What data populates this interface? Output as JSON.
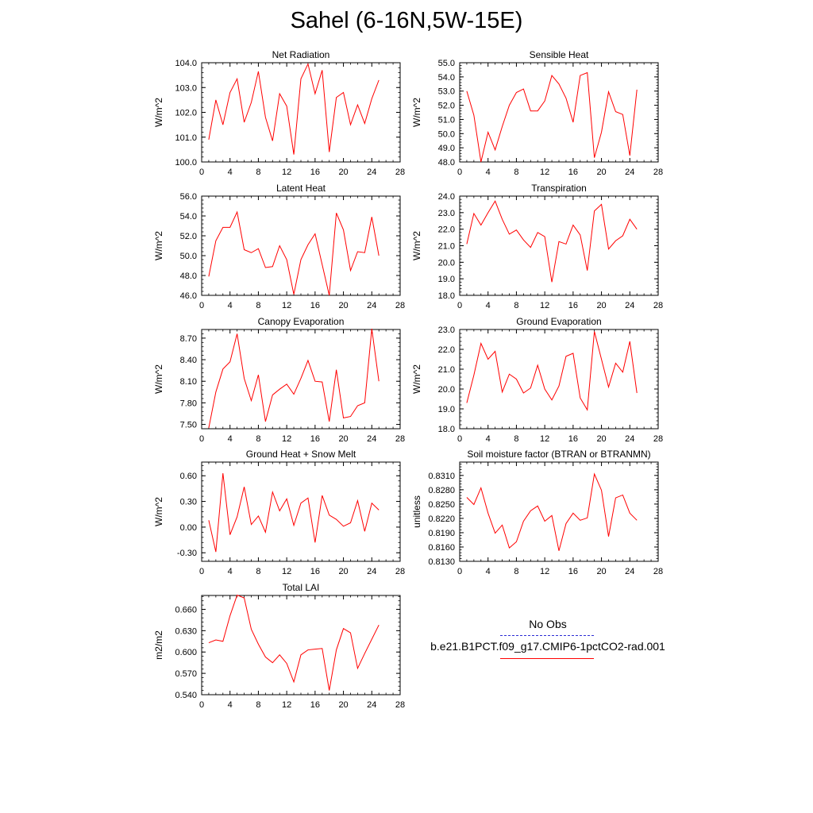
{
  "page": {
    "title": "Sahel (6-16N,5W-15E)"
  },
  "legend": {
    "entries": [
      {
        "label": "No Obs",
        "color": "#2b2bd4",
        "dashed": true
      },
      {
        "label": "b.e21.B1PCT.f09_g17.CMIP6-1pctCO2-rad.001",
        "color": "#ff0000",
        "dashed": false
      }
    ]
  },
  "chart_data": [
    {
      "type": "line",
      "title": "Net Radiation",
      "ylabel": "W/m^2",
      "xlim": [
        0,
        28
      ],
      "xticks": [
        0,
        4,
        8,
        12,
        16,
        20,
        24,
        28
      ],
      "ylim": [
        100.0,
        104.0
      ],
      "yticks": [
        "100.0",
        "101.0",
        "102.0",
        "103.0",
        "104.0"
      ],
      "x": [
        1,
        2,
        3,
        4,
        5,
        6,
        7,
        8,
        9,
        10,
        11,
        12,
        13,
        14,
        15,
        16,
        17,
        18,
        19,
        20,
        21,
        22,
        23,
        24,
        25
      ],
      "series": [
        {
          "color": "#ff0000",
          "values": [
            100.9,
            102.5,
            101.5,
            102.8,
            103.35,
            101.6,
            102.4,
            103.65,
            101.8,
            100.85,
            102.75,
            102.25,
            100.3,
            103.35,
            103.95,
            102.75,
            103.7,
            100.4,
            102.6,
            102.8,
            101.5,
            102.3,
            101.55,
            102.55,
            103.3
          ]
        }
      ]
    },
    {
      "type": "line",
      "title": "Sensible Heat",
      "ylabel": "W/m^2",
      "xlim": [
        0,
        28
      ],
      "xticks": [
        0,
        4,
        8,
        12,
        16,
        20,
        24,
        28
      ],
      "ylim": [
        48.0,
        55.0
      ],
      "yticks": [
        "48.0",
        "49.0",
        "50.0",
        "51.0",
        "52.0",
        "53.0",
        "54.0",
        "55.0"
      ],
      "x": [
        1,
        2,
        3,
        4,
        5,
        6,
        7,
        8,
        9,
        10,
        11,
        12,
        13,
        14,
        15,
        16,
        17,
        18,
        19,
        20,
        21,
        22,
        23,
        24,
        25
      ],
      "series": [
        {
          "color": "#ff0000",
          "values": [
            53.0,
            51.3,
            48.0,
            50.1,
            48.85,
            50.5,
            52.0,
            52.9,
            53.15,
            51.6,
            51.6,
            52.3,
            54.1,
            53.5,
            52.5,
            50.8,
            54.1,
            54.3,
            48.3,
            50.1,
            52.95,
            51.55,
            51.35,
            48.45,
            53.1
          ]
        }
      ]
    },
    {
      "type": "line",
      "title": "Latent Heat",
      "ylabel": "W/m^2",
      "xlim": [
        0,
        28
      ],
      "xticks": [
        0,
        4,
        8,
        12,
        16,
        20,
        24,
        28
      ],
      "ylim": [
        46.0,
        56.0
      ],
      "yticks": [
        "46.0",
        "48.0",
        "50.0",
        "52.0",
        "54.0",
        "56.0"
      ],
      "x": [
        1,
        2,
        3,
        4,
        5,
        6,
        7,
        8,
        9,
        10,
        11,
        12,
        13,
        14,
        15,
        16,
        17,
        18,
        19,
        20,
        21,
        22,
        23,
        24,
        25
      ],
      "series": [
        {
          "color": "#ff0000",
          "values": [
            47.9,
            51.5,
            52.85,
            52.85,
            54.4,
            50.6,
            50.3,
            50.7,
            48.8,
            48.9,
            51.0,
            49.6,
            46.1,
            49.6,
            51.1,
            52.2,
            49.1,
            46.0,
            54.3,
            52.6,
            48.5,
            50.4,
            50.3,
            53.9,
            50.0
          ]
        }
      ]
    },
    {
      "type": "line",
      "title": "Transpiration",
      "ylabel": "W/m^2",
      "xlim": [
        0,
        28
      ],
      "xticks": [
        0,
        4,
        8,
        12,
        16,
        20,
        24,
        28
      ],
      "ylim": [
        18.0,
        24.0
      ],
      "yticks": [
        "18.0",
        "19.0",
        "20.0",
        "21.0",
        "22.0",
        "23.0",
        "24.0"
      ],
      "x": [
        1,
        2,
        3,
        4,
        5,
        6,
        7,
        8,
        9,
        10,
        11,
        12,
        13,
        14,
        15,
        16,
        17,
        18,
        19,
        20,
        21,
        22,
        23,
        24,
        25
      ],
      "series": [
        {
          "color": "#ff0000",
          "values": [
            21.1,
            22.95,
            22.25,
            23.0,
            23.7,
            22.6,
            21.7,
            21.95,
            21.35,
            20.9,
            21.8,
            21.55,
            18.8,
            21.25,
            21.1,
            22.25,
            21.65,
            19.5,
            23.1,
            23.5,
            20.8,
            21.3,
            21.6,
            22.6,
            22.0
          ]
        }
      ]
    },
    {
      "type": "line",
      "title": "Canopy Evaporation",
      "ylabel": "W/m^2",
      "xlim": [
        0,
        28
      ],
      "xticks": [
        0,
        4,
        8,
        12,
        16,
        20,
        24,
        28
      ],
      "ylim": [
        7.44,
        8.82
      ],
      "yticks": [
        "7.50",
        "7.80",
        "8.10",
        "8.40",
        "8.70"
      ],
      "yticks_at": [
        7.5,
        7.8,
        8.1,
        8.4,
        8.7
      ],
      "x": [
        1,
        2,
        3,
        4,
        5,
        6,
        7,
        8,
        9,
        10,
        11,
        12,
        13,
        14,
        15,
        16,
        17,
        18,
        19,
        20,
        21,
        22,
        23,
        24,
        25
      ],
      "series": [
        {
          "color": "#ff0000",
          "values": [
            7.45,
            7.95,
            8.27,
            8.37,
            8.76,
            8.14,
            7.83,
            8.19,
            7.54,
            7.91,
            7.99,
            8.06,
            7.92,
            8.14,
            8.39,
            8.1,
            8.09,
            7.54,
            8.26,
            7.59,
            7.61,
            7.76,
            7.8,
            8.83,
            8.1
          ]
        }
      ]
    },
    {
      "type": "line",
      "title": "Ground Evaporation",
      "ylabel": "W/m^2",
      "xlim": [
        0,
        28
      ],
      "xticks": [
        0,
        4,
        8,
        12,
        16,
        20,
        24,
        28
      ],
      "ylim": [
        18.0,
        23.0
      ],
      "yticks": [
        "18.0",
        "19.0",
        "20.0",
        "21.0",
        "22.0",
        "23.0"
      ],
      "x": [
        1,
        2,
        3,
        4,
        5,
        6,
        7,
        8,
        9,
        10,
        11,
        12,
        13,
        14,
        15,
        16,
        17,
        18,
        19,
        20,
        21,
        22,
        23,
        24,
        25
      ],
      "series": [
        {
          "color": "#ff0000",
          "values": [
            19.3,
            20.7,
            22.3,
            21.5,
            21.9,
            19.85,
            20.75,
            20.5,
            19.8,
            20.05,
            21.2,
            20.0,
            19.45,
            20.15,
            21.65,
            21.8,
            19.55,
            18.95,
            22.9,
            21.5,
            20.1,
            21.3,
            20.85,
            22.4,
            19.8
          ]
        }
      ]
    },
    {
      "type": "line",
      "title": "Ground Heat + Snow Melt",
      "ylabel": "W/m^2",
      "xlim": [
        0,
        28
      ],
      "xticks": [
        0,
        4,
        8,
        12,
        16,
        20,
        24,
        28
      ],
      "ylim": [
        -0.4,
        0.76
      ],
      "yticks": [
        "-0.30",
        "0.00",
        "0.30",
        "0.60"
      ],
      "yticks_at": [
        -0.3,
        0.0,
        0.3,
        0.6
      ],
      "x": [
        1,
        2,
        3,
        4,
        5,
        6,
        7,
        8,
        9,
        10,
        11,
        12,
        13,
        14,
        15,
        16,
        17,
        18,
        19,
        20,
        21,
        22,
        23,
        24,
        25
      ],
      "series": [
        {
          "color": "#ff0000",
          "values": [
            0.08,
            -0.29,
            0.63,
            -0.09,
            0.12,
            0.47,
            0.03,
            0.13,
            -0.06,
            0.41,
            0.19,
            0.33,
            0.02,
            0.28,
            0.34,
            -0.18,
            0.37,
            0.14,
            0.09,
            0.01,
            0.05,
            0.31,
            -0.05,
            0.28,
            0.2
          ]
        }
      ]
    },
    {
      "type": "line",
      "title": "Soil moisture factor (BTRAN or BTRANMN)",
      "ylabel": "unitless",
      "xlim": [
        0,
        28
      ],
      "xticks": [
        0,
        4,
        8,
        12,
        16,
        20,
        24,
        28
      ],
      "ylim": [
        0.813,
        0.8338
      ],
      "yticks": [
        "0.8130",
        "0.8160",
        "0.8190",
        "0.8220",
        "0.8250",
        "0.8280",
        "0.8310"
      ],
      "yticks_at": [
        0.813,
        0.816,
        0.819,
        0.822,
        0.825,
        0.828,
        0.831
      ],
      "x": [
        1,
        2,
        3,
        4,
        5,
        6,
        7,
        8,
        9,
        10,
        11,
        12,
        13,
        14,
        15,
        16,
        17,
        18,
        19,
        20,
        21,
        22,
        23,
        24,
        25
      ],
      "series": [
        {
          "color": "#ff0000",
          "values": [
            0.8264,
            0.8249,
            0.8284,
            0.8231,
            0.8189,
            0.8206,
            0.8158,
            0.8171,
            0.8214,
            0.8236,
            0.8246,
            0.8214,
            0.8226,
            0.8152,
            0.8209,
            0.8231,
            0.8216,
            0.8221,
            0.8313,
            0.8279,
            0.8182,
            0.8263,
            0.8269,
            0.8231,
            0.8216
          ]
        }
      ]
    },
    {
      "type": "line",
      "title": "Total LAI",
      "ylabel": "m2/m2",
      "xlim": [
        0,
        28
      ],
      "xticks": [
        0,
        4,
        8,
        12,
        16,
        20,
        24,
        28
      ],
      "ylim": [
        0.54,
        0.6795
      ],
      "yticks": [
        "0.540",
        "0.570",
        "0.600",
        "0.630",
        "0.660"
      ],
      "yticks_at": [
        0.54,
        0.57,
        0.6,
        0.63,
        0.66
      ],
      "x": [
        1,
        2,
        3,
        4,
        5,
        6,
        7,
        8,
        9,
        10,
        11,
        12,
        13,
        14,
        15,
        16,
        17,
        18,
        19,
        20,
        21,
        22,
        23,
        24,
        25
      ],
      "series": [
        {
          "color": "#ff0000",
          "values": [
            0.613,
            0.617,
            0.615,
            0.651,
            0.68,
            0.676,
            0.632,
            0.611,
            0.593,
            0.585,
            0.596,
            0.584,
            0.558,
            0.596,
            0.603,
            0.604,
            0.605,
            0.546,
            0.603,
            0.633,
            0.627,
            0.577,
            0.598,
            0.618,
            0.638
          ]
        }
      ]
    }
  ]
}
